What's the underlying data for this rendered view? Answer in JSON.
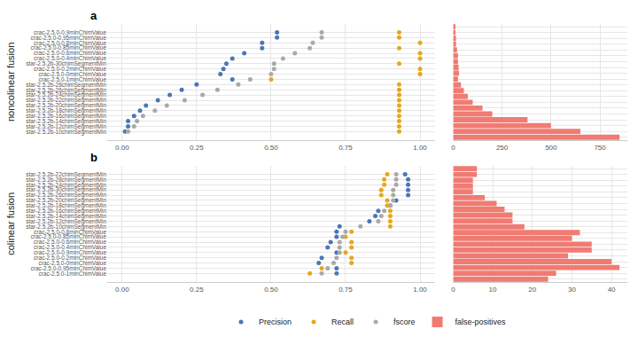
{
  "chart_data": [
    {
      "type": "scatter",
      "title": "a",
      "y_label": "noncolinear fusion",
      "marker": "circle",
      "grid": true,
      "legend": "bottom",
      "categories": [
        "crac-2.5.0-0.9minChimValue",
        "crac-2.5.0-0.95minChimValue",
        "crac-2.5.0-0.8minChimValue",
        "crac-2.5.0-0.85minChimValue",
        "crac-2.5.0-0.6minChimValue",
        "crac-2.5.0-0.4minChimValue",
        "star-2.5.2b-30chimSegmentMin",
        "crac-2.5.0-0.2minChimValue",
        "crac-2.5.0-0minChimValue",
        "crac-2.5.0-1minChimValue",
        "star-2.5.2b-28chimSegmentMin",
        "star-2.5.2b-26chimSegmentMin",
        "star-2.5.2b-24chimSegmentMin",
        "star-2.5.2b-22chimSegmentMin",
        "star-2.5.2b-20chimSegmentMin",
        "star-2.5.2b-18chimSegmentMin",
        "star-2.5.2b-16chimSegmentMin",
        "star-2.5.2b-14chimSegmentMin",
        "star-2.5.2b-12chimSegmentMin",
        "star-2.5.2b-10chimSegmentMin"
      ],
      "series": [
        {
          "name": "Precision",
          "color": "#4a77b4",
          "values": [
            0.52,
            0.52,
            0.47,
            0.47,
            0.41,
            0.37,
            0.35,
            0.34,
            0.33,
            0.37,
            0.25,
            0.2,
            0.16,
            0.12,
            0.08,
            0.06,
            0.04,
            0.02,
            0.02,
            0.01
          ]
        },
        {
          "name": "Recall",
          "color": "#e6a817",
          "values": [
            0.93,
            0.93,
            1.0,
            0.93,
            1.0,
            1.0,
            0.93,
            1.0,
            1.0,
            0.5,
            0.93,
            0.93,
            0.93,
            0.93,
            0.93,
            0.93,
            0.93,
            0.93,
            0.93,
            0.93
          ]
        },
        {
          "name": "fscore",
          "color": "#a9a9a9",
          "values": [
            0.67,
            0.67,
            0.64,
            0.63,
            0.58,
            0.54,
            0.51,
            0.51,
            0.5,
            0.43,
            0.39,
            0.32,
            0.27,
            0.21,
            0.15,
            0.11,
            0.07,
            0.05,
            0.04,
            0.02
          ]
        }
      ],
      "xlim": [
        -0.05,
        1.05
      ],
      "xticks": [
        {
          "value": 0,
          "label": "0.00"
        },
        {
          "value": 0.25,
          "label": "0.25"
        },
        {
          "value": 0.5,
          "label": "0.50"
        },
        {
          "value": 0.75,
          "label": "0.75"
        },
        {
          "value": 1,
          "label": "1.00"
        }
      ]
    },
    {
      "type": "bar",
      "orientation": "horizontal",
      "tick_labels": "x",
      "grid": true,
      "categories": [
        "crac-2.5.0-0.9minChimValue",
        "crac-2.5.0-0.95minChimValue",
        "crac-2.5.0-0.8minChimValue",
        "crac-2.5.0-0.85minChimValue",
        "crac-2.5.0-0.6minChimValue",
        "crac-2.5.0-0.4minChimValue",
        "star-2.5.2b-30chimSegmentMin",
        "crac-2.5.0-0.2minChimValue",
        "crac-2.5.0-0minChimValue",
        "crac-2.5.0-1minChimValue",
        "star-2.5.2b-28chimSegmentMin",
        "star-2.5.2b-26chimSegmentMin",
        "star-2.5.2b-24chimSegmentMin",
        "star-2.5.2b-22chimSegmentMin",
        "star-2.5.2b-20chimSegmentMin",
        "star-2.5.2b-18chimSegmentMin",
        "star-2.5.2b-16chimSegmentMin",
        "star-2.5.2b-14chimSegmentMin",
        "star-2.5.2b-12chimSegmentMin",
        "star-2.5.2b-10chimSegmentMin"
      ],
      "series": [
        {
          "name": "false-positives",
          "color": "#f07b72",
          "values": [
            12,
            12,
            15,
            15,
            20,
            25,
            25,
            28,
            30,
            25,
            40,
            55,
            75,
            100,
            150,
            200,
            380,
            500,
            650,
            850
          ]
        }
      ],
      "xlim": [
        0,
        890
      ],
      "xticks": [
        0,
        250,
        500,
        750
      ]
    },
    {
      "type": "scatter",
      "title": "b",
      "y_label": "colinear fusion",
      "marker": "circle",
      "grid": true,
      "categories": [
        "star-2.5.2b-22chimSegmentMin",
        "star-2.5.2b-28chimSegmentMin",
        "star-2.5.2b-24chimSegmentMin",
        "star-2.5.2b-30chimSegmentMin",
        "star-2.5.2b-26chimSegmentMin",
        "star-2.5.2b-20chimSegmentMin",
        "star-2.5.2b-18chimSegmentMin",
        "star-2.5.2b-16chimSegmentMin",
        "star-2.5.2b-14chimSegmentMin",
        "star-2.5.2b-12chimSegmentMin",
        "star-2.5.2b-10chimSegmentMin",
        "crac-2.5.0-0.8minChimValue",
        "crac-2.5.0-0.85minChimValue",
        "crac-2.5.0-0.6minChimValue",
        "crac-2.5.0-0.4minChimValue",
        "crac-2.5.0-0.9minChimValue",
        "crac-2.5.0-0.2minChimValue",
        "crac-2.5.0-0minChimValue",
        "crac-2.5.0-0.95minChimValue",
        "crac-2.5.0-1minChimValue"
      ],
      "series": [
        {
          "name": "Precision",
          "color": "#4a77b4",
          "values": [
            0.95,
            0.96,
            0.96,
            0.96,
            0.96,
            0.92,
            0.9,
            0.86,
            0.85,
            0.83,
            0.73,
            0.72,
            0.72,
            0.7,
            0.69,
            0.72,
            0.67,
            0.66,
            0.72,
            0.72
          ]
        },
        {
          "name": "Recall",
          "color": "#e6a817",
          "values": [
            0.89,
            0.88,
            0.88,
            0.87,
            0.87,
            0.89,
            0.89,
            0.9,
            0.9,
            0.9,
            0.9,
            0.77,
            0.75,
            0.77,
            0.77,
            0.75,
            0.77,
            0.77,
            0.67,
            0.63
          ]
        },
        {
          "name": "fscore",
          "color": "#a9a9a9",
          "values": [
            0.92,
            0.92,
            0.92,
            0.91,
            0.91,
            0.91,
            0.9,
            0.88,
            0.87,
            0.86,
            0.8,
            0.75,
            0.74,
            0.73,
            0.73,
            0.73,
            0.72,
            0.71,
            0.69,
            0.67
          ]
        }
      ],
      "xlim": [
        -0.05,
        1.05
      ],
      "xticks": [
        {
          "value": 0,
          "label": "0.00"
        },
        {
          "value": 0.25,
          "label": "0.25"
        },
        {
          "value": 0.5,
          "label": "0.50"
        },
        {
          "value": 0.75,
          "label": "0.75"
        },
        {
          "value": 1,
          "label": "1.00"
        }
      ]
    },
    {
      "type": "bar",
      "orientation": "horizontal",
      "tick_labels": "x",
      "grid": true,
      "categories": [
        "star-2.5.2b-22chimSegmentMin",
        "star-2.5.2b-28chimSegmentMin",
        "star-2.5.2b-24chimSegmentMin",
        "star-2.5.2b-30chimSegmentMin",
        "star-2.5.2b-26chimSegmentMin",
        "star-2.5.2b-20chimSegmentMin",
        "star-2.5.2b-18chimSegmentMin",
        "star-2.5.2b-16chimSegmentMin",
        "star-2.5.2b-14chimSegmentMin",
        "star-2.5.2b-12chimSegmentMin",
        "star-2.5.2b-10chimSegmentMin",
        "crac-2.5.0-0.8minChimValue",
        "crac-2.5.0-0.85minChimValue",
        "crac-2.5.0-0.6minChimValue",
        "crac-2.5.0-0.4minChimValue",
        "crac-2.5.0-0.9minChimValue",
        "crac-2.5.0-0.2minChimValue",
        "crac-2.5.0-0minChimValue",
        "crac-2.5.0-0.95minChimValue",
        "crac-2.5.0-1minChimValue"
      ],
      "series": [
        {
          "name": "false-positives",
          "color": "#f07b72",
          "values": [
            6,
            6,
            5,
            5,
            5,
            8,
            11,
            13,
            15,
            15,
            18,
            32,
            30,
            35,
            35,
            29,
            40,
            42,
            26,
            24
          ]
        }
      ],
      "xlim": [
        0,
        44
      ],
      "xticks": [
        0,
        10,
        20,
        30,
        40
      ]
    }
  ]
}
